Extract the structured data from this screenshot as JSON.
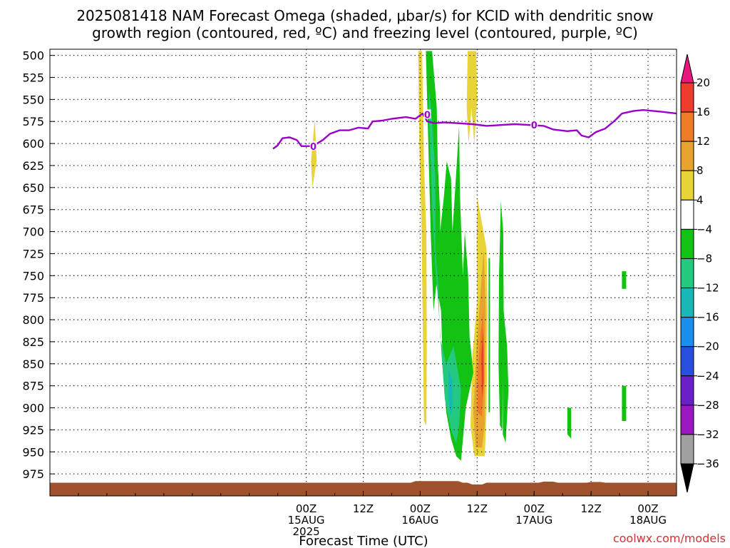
{
  "chart_data": {
    "type": "heatmap",
    "title_line1": "2025081418 NAM Forecast Omega (shaded, μbar/s) for KCID with dendritic snow",
    "title_line2": "growth region (contoured, red, ºC) and freezing level (contoured, purple, ºC)",
    "xlabel": "Forecast Time (UTC)",
    "credit": "coolwx.com/models",
    "x_forecast_hours": [
      -48,
      84
    ],
    "x_ticks": [
      {
        "hour": 6,
        "line1": "00Z",
        "line2": "15AUG",
        "line3": "2025"
      },
      {
        "hour": 18,
        "line1": "12Z",
        "line2": "",
        "line3": ""
      },
      {
        "hour": 30,
        "line1": "00Z",
        "line2": "16AUG",
        "line3": ""
      },
      {
        "hour": 42,
        "line1": "12Z",
        "line2": "",
        "line3": ""
      },
      {
        "hour": 54,
        "line1": "00Z",
        "line2": "17AUG",
        "line3": ""
      },
      {
        "hour": 66,
        "line1": "12Z",
        "line2": "",
        "line3": ""
      },
      {
        "hour": 78,
        "line1": "00Z",
        "line2": "18AUG",
        "line3": ""
      }
    ],
    "y_pressure_levels": [
      "500",
      "525",
      "550",
      "575",
      "600",
      "625",
      "650",
      "675",
      "700",
      "725",
      "750",
      "775",
      "800",
      "825",
      "850",
      "875",
      "900",
      "925",
      "950",
      "975"
    ],
    "ylim_hPa": [
      493,
      1000
    ],
    "grid": true,
    "colorbar": {
      "labels": [
        "20",
        "16",
        "12",
        "8",
        "4",
        "−4",
        "−8",
        "−12",
        "−16",
        "−20",
        "−24",
        "−28",
        "−32",
        "−36"
      ],
      "bins": [
        {
          "from": 20,
          "to": 24,
          "color": "#e8177e"
        },
        {
          "from": 16,
          "to": 20,
          "color": "#ef3b2c"
        },
        {
          "from": 12,
          "to": 16,
          "color": "#f07b27"
        },
        {
          "from": 8,
          "to": 12,
          "color": "#e8a22e"
        },
        {
          "from": 4,
          "to": 8,
          "color": "#e9d437"
        },
        {
          "from": -4,
          "to": 4,
          "color": "#ffffff"
        },
        {
          "from": -8,
          "to": -4,
          "color": "#13c313"
        },
        {
          "from": -12,
          "to": -8,
          "color": "#22c97f"
        },
        {
          "from": -16,
          "to": -12,
          "color": "#19b8b8"
        },
        {
          "from": -20,
          "to": -16,
          "color": "#1a8ff0"
        },
        {
          "from": -24,
          "to": -20,
          "color": "#2750e0"
        },
        {
          "from": -28,
          "to": -24,
          "color": "#6a20c8"
        },
        {
          "from": -32,
          "to": -28,
          "color": "#9b18c0"
        },
        {
          "from": -36,
          "to": -32,
          "color": "#a0a0a0"
        },
        {
          "from": -40,
          "to": -36,
          "color": "#000000"
        }
      ]
    },
    "freezing_level": {
      "color": "#9a00c8",
      "contour_label": "0",
      "points": [
        [
          -1,
          606
        ],
        [
          0,
          602
        ],
        [
          1,
          594
        ],
        [
          2.5,
          593
        ],
        [
          4,
          596
        ],
        [
          5,
          603
        ],
        [
          7,
          603
        ],
        [
          8,
          601
        ],
        [
          9.5,
          596
        ],
        [
          11,
          589
        ],
        [
          13,
          585
        ],
        [
          15,
          585
        ],
        [
          17,
          582
        ],
        [
          19,
          583
        ],
        [
          20,
          575
        ],
        [
          22,
          574
        ],
        [
          24,
          572
        ],
        [
          27,
          570
        ],
        [
          29,
          572
        ],
        [
          30.5,
          566
        ],
        [
          31.5,
          575
        ],
        [
          33,
          577
        ],
        [
          35,
          576
        ],
        [
          38,
          577
        ],
        [
          41,
          578
        ],
        [
          44,
          580
        ],
        [
          47,
          579
        ],
        [
          50,
          578
        ],
        [
          53,
          579
        ],
        [
          56,
          580
        ],
        [
          58,
          584
        ],
        [
          61,
          586
        ],
        [
          63,
          585
        ],
        [
          64,
          591
        ],
        [
          65.5,
          593
        ],
        [
          67,
          587
        ],
        [
          69,
          583
        ],
        [
          71,
          574
        ],
        [
          72.5,
          566
        ],
        [
          75,
          563
        ],
        [
          77,
          562
        ],
        [
          79,
          563
        ],
        [
          81,
          564
        ],
        [
          84,
          566
        ]
      ]
    },
    "shaded_regions": [
      {
        "value": 6,
        "points": [
          [
            7,
            620
          ],
          [
            7.8,
            572
          ],
          [
            8.2,
            620
          ],
          [
            7.3,
            650
          ]
        ]
      },
      {
        "value": 6,
        "points": [
          [
            29.6,
            495
          ],
          [
            30.4,
            495
          ],
          [
            30.8,
            620
          ],
          [
            31.3,
            700
          ],
          [
            31.4,
            830
          ],
          [
            31.3,
            920
          ],
          [
            30.8,
            915
          ],
          [
            30.6,
            830
          ],
          [
            30.3,
            700
          ],
          [
            29.8,
            600
          ]
        ]
      },
      {
        "value": 6,
        "points": [
          [
            40,
            495
          ],
          [
            41.8,
            495
          ],
          [
            42,
            550
          ],
          [
            41.4,
            600
          ],
          [
            40.8,
            560
          ],
          [
            40.2,
            600
          ],
          [
            39.8,
            560
          ]
        ]
      },
      {
        "value": 6,
        "points": [
          [
            42,
            660
          ],
          [
            43,
            690
          ],
          [
            44,
            720
          ],
          [
            44.2,
            790
          ],
          [
            44,
            900
          ],
          [
            43.6,
            955
          ],
          [
            41.4,
            955
          ],
          [
            40.6,
            920
          ],
          [
            41,
            840
          ],
          [
            42,
            780
          ],
          [
            41.9,
            720
          ]
        ]
      },
      {
        "value": 10,
        "points": [
          [
            43.4,
            720
          ],
          [
            43.8,
            790
          ],
          [
            43.6,
            920
          ],
          [
            43,
            945
          ],
          [
            41.7,
            945
          ],
          [
            41.2,
            905
          ],
          [
            41.9,
            830
          ],
          [
            42.7,
            770
          ]
        ]
      },
      {
        "value": 14,
        "points": [
          [
            43.3,
            790
          ],
          [
            43.4,
            880
          ],
          [
            43,
            910
          ],
          [
            42.1,
            905
          ],
          [
            42.1,
            860
          ],
          [
            42.7,
            815
          ]
        ]
      },
      {
        "value": 18,
        "points": [
          [
            43.3,
            810
          ],
          [
            43.4,
            870
          ],
          [
            43,
            888
          ],
          [
            42.9,
            840
          ]
        ]
      },
      {
        "value": -6,
        "points": [
          [
            31.2,
            495
          ],
          [
            32.5,
            495
          ],
          [
            33.5,
            560
          ],
          [
            33.7,
            620
          ],
          [
            34.2,
            680
          ],
          [
            34.2,
            700
          ],
          [
            35,
            660
          ],
          [
            35.6,
            620
          ],
          [
            36.5,
            640
          ],
          [
            36.8,
            700
          ],
          [
            37.5,
            640
          ],
          [
            38.2,
            580
          ],
          [
            38.4,
            660
          ],
          [
            39,
            750
          ],
          [
            39.4,
            700
          ],
          [
            40.1,
            750
          ],
          [
            40.4,
            820
          ],
          [
            41.2,
            860
          ],
          [
            39.6,
            900
          ],
          [
            38.6,
            960
          ],
          [
            37.6,
            955
          ],
          [
            36.5,
            935
          ],
          [
            35.5,
            905
          ],
          [
            34.8,
            860
          ],
          [
            34.4,
            790
          ],
          [
            33.4,
            760
          ],
          [
            32.8,
            790
          ],
          [
            32.2,
            700
          ],
          [
            31.8,
            620
          ]
        ]
      },
      {
        "value": -6,
        "points": [
          [
            47,
            665
          ],
          [
            47.5,
            700
          ],
          [
            47.6,
            800
          ],
          [
            47.3,
            925
          ],
          [
            46.8,
            920
          ],
          [
            46.5,
            850
          ],
          [
            46.6,
            750
          ]
        ]
      },
      {
        "value": -6,
        "points": [
          [
            47.4,
            780
          ],
          [
            48.3,
            830
          ],
          [
            48.6,
            880
          ],
          [
            48,
            940
          ],
          [
            47.4,
            930
          ]
        ]
      },
      {
        "value": -6,
        "points": [
          [
            44.4,
            730
          ],
          [
            44.7,
            730
          ],
          [
            44.7,
            905
          ],
          [
            44.4,
            905
          ]
        ]
      },
      {
        "value": -6,
        "points": [
          [
            61,
            900
          ],
          [
            61.8,
            900
          ],
          [
            61.8,
            935
          ],
          [
            61,
            930
          ]
        ]
      },
      {
        "value": -6,
        "points": [
          [
            72.5,
            745
          ],
          [
            73.4,
            745
          ],
          [
            73.4,
            765
          ],
          [
            72.5,
            765
          ]
        ]
      },
      {
        "value": -6,
        "points": [
          [
            72.5,
            875
          ],
          [
            73.4,
            875
          ],
          [
            73.4,
            915
          ],
          [
            72.5,
            915
          ]
        ]
      },
      {
        "value": -10,
        "points": [
          [
            32,
            540
          ],
          [
            32.7,
            590
          ],
          [
            33.2,
            640
          ],
          [
            33.2,
            720
          ],
          [
            33.8,
            760
          ],
          [
            34.2,
            820
          ],
          [
            35.5,
            850
          ],
          [
            37,
            830
          ],
          [
            38,
            860
          ],
          [
            38.6,
            880
          ],
          [
            38.2,
            920
          ],
          [
            37.6,
            940
          ],
          [
            36.5,
            925
          ],
          [
            35.2,
            890
          ],
          [
            34.5,
            840
          ],
          [
            33.8,
            780
          ],
          [
            33.2,
            740
          ],
          [
            32.6,
            680
          ],
          [
            32.2,
            620
          ],
          [
            31.8,
            560
          ]
        ]
      },
      {
        "value": -14,
        "points": [
          [
            36,
            855
          ],
          [
            36.8,
            870
          ],
          [
            36.8,
            900
          ],
          [
            36.3,
            910
          ],
          [
            35.9,
            880
          ]
        ]
      }
    ],
    "terrain_hPa": 985,
    "terrain_color": "#a0522d"
  }
}
